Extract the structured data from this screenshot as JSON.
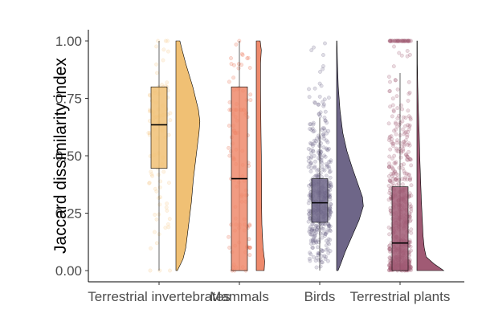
{
  "chart_data": {
    "type": "raincloud",
    "title": "",
    "xlabel": "",
    "ylabel": "Jaccard dissimilarity index",
    "ylim": [
      0,
      1
    ],
    "yticks": [
      0.0,
      0.25,
      0.5,
      0.75,
      1.0
    ],
    "ytick_labels": [
      "0.00",
      "0.25",
      "0.50",
      "0.75",
      "1.00"
    ],
    "grid": false,
    "legend": "none",
    "categories": [
      "Terrestrial invertebrates",
      "Mammals",
      "Birds",
      "Terrestrial plants"
    ],
    "series": [
      {
        "category": "Terrestrial invertebrates",
        "color": "#f0c074",
        "point_color": "#f5c98a",
        "box": {
          "whisker_low": 0.0,
          "q1": 0.445,
          "median": 0.635,
          "q3": 0.8,
          "whisker_high": 1.0
        },
        "n_points": 90,
        "density": [
          [
            0,
            0.05
          ],
          [
            0.05,
            0.25
          ],
          [
            0.1,
            0.35
          ],
          [
            0.2,
            0.45
          ],
          [
            0.3,
            0.55
          ],
          [
            0.4,
            0.62
          ],
          [
            0.5,
            0.72
          ],
          [
            0.6,
            0.82
          ],
          [
            0.65,
            0.85
          ],
          [
            0.7,
            0.8
          ],
          [
            0.8,
            0.6
          ],
          [
            0.9,
            0.35
          ],
          [
            0.97,
            0.2
          ],
          [
            1.0,
            0.14
          ]
        ]
      },
      {
        "category": "Mammals",
        "color": "#ee8a6c",
        "point_color": "#ea6a4a",
        "box": {
          "whisker_low": 0.0,
          "q1": 0.0,
          "median": 0.4,
          "q3": 0.8,
          "whisker_high": 1.0
        },
        "n_points": 110,
        "density": [
          [
            0,
            0.28
          ],
          [
            0.04,
            0.3
          ],
          [
            0.1,
            0.24
          ],
          [
            0.2,
            0.2
          ],
          [
            0.3,
            0.19
          ],
          [
            0.4,
            0.19
          ],
          [
            0.5,
            0.18
          ],
          [
            0.6,
            0.17
          ],
          [
            0.7,
            0.16
          ],
          [
            0.8,
            0.15
          ],
          [
            0.9,
            0.15
          ],
          [
            0.96,
            0.18
          ],
          [
            1.0,
            0.14
          ]
        ]
      },
      {
        "category": "Birds",
        "color": "#6e6688",
        "point_color": "#6e6688",
        "box": {
          "whisker_low": 0.0,
          "q1": 0.21,
          "median": 0.295,
          "q3": 0.4,
          "whisker_high": 0.665
        },
        "n_points": 420,
        "density": [
          [
            0,
            0.05
          ],
          [
            0.03,
            0.15
          ],
          [
            0.08,
            0.3
          ],
          [
            0.15,
            0.55
          ],
          [
            0.22,
            0.8
          ],
          [
            0.28,
            0.95
          ],
          [
            0.32,
            0.92
          ],
          [
            0.38,
            0.75
          ],
          [
            0.45,
            0.55
          ],
          [
            0.52,
            0.37
          ],
          [
            0.6,
            0.22
          ],
          [
            0.7,
            0.12
          ],
          [
            0.8,
            0.06
          ],
          [
            0.9,
            0.03
          ],
          [
            1.0,
            0.01
          ]
        ]
      },
      {
        "category": "Terrestrial plants",
        "color": "#a05a74",
        "point_color": "#a05a74",
        "box": {
          "whisker_low": 0.0,
          "q1": 0.0,
          "median": 0.12,
          "q3": 0.365,
          "whisker_high": 0.86
        },
        "n_points": 600,
        "density": [
          [
            0,
            0.95
          ],
          [
            0.03,
            0.6
          ],
          [
            0.06,
            0.33
          ],
          [
            0.1,
            0.26
          ],
          [
            0.15,
            0.22
          ],
          [
            0.2,
            0.2
          ],
          [
            0.3,
            0.16
          ],
          [
            0.4,
            0.13
          ],
          [
            0.5,
            0.1
          ],
          [
            0.6,
            0.08
          ],
          [
            0.7,
            0.05
          ],
          [
            0.8,
            0.03
          ],
          [
            0.9,
            0.015
          ],
          [
            1.0,
            0.01
          ]
        ]
      }
    ]
  }
}
